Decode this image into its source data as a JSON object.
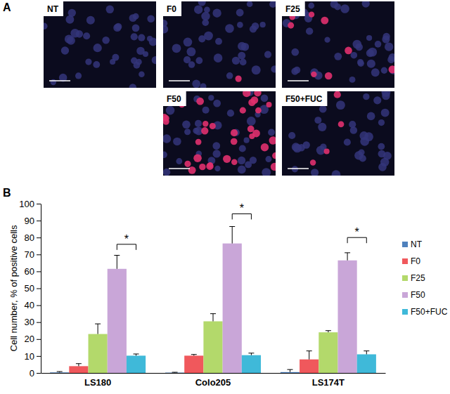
{
  "panel_labels": [
    "A",
    "B"
  ],
  "images": {
    "labels": [
      "NT",
      "F0",
      "F25",
      "F50",
      "F50+FUC"
    ]
  },
  "chart_data": {
    "type": "bar",
    "y_label": "Cell number, % of positive cells",
    "categories": [
      "LS180",
      "Colo205",
      "LS174T"
    ],
    "series": [
      {
        "name": "NT",
        "color": "#4f81bd",
        "values": [
          0.3,
          0.2,
          0.5
        ],
        "errors": [
          0.5,
          0.2,
          1.5
        ]
      },
      {
        "name": "F0",
        "color": "#f0585c",
        "values": [
          4,
          10.2,
          8
        ],
        "errors": [
          1.5,
          0.7,
          5
        ]
      },
      {
        "name": "F25",
        "color": "#b3d96b",
        "values": [
          23,
          30.5,
          24
        ],
        "errors": [
          6,
          4.5,
          1
        ]
      },
      {
        "name": "F50",
        "color": "#c9a6d8",
        "values": [
          61.5,
          76.5,
          66.5
        ],
        "errors": [
          8,
          10,
          4.5
        ]
      },
      {
        "name": "F50+FUC",
        "color": "#3fb9d9",
        "values": [
          10.2,
          10.5,
          11
        ],
        "errors": [
          1,
          1.2,
          2
        ]
      }
    ],
    "ylim": [
      0,
      100
    ],
    "yticks": [
      0,
      10,
      20,
      30,
      40,
      50,
      60,
      70,
      80,
      90,
      100
    ],
    "legend": "right",
    "brackets": [
      {
        "category": "LS180",
        "from": "F50",
        "to": "F50+FUC",
        "y": 76,
        "label": "*"
      },
      {
        "category": "Colo205",
        "from": "F50",
        "to": "F50+FUC",
        "y": 94,
        "label": "*"
      },
      {
        "category": "LS174T",
        "from": "F50",
        "to": "F50+FUC",
        "y": 80,
        "label": "*"
      }
    ]
  }
}
